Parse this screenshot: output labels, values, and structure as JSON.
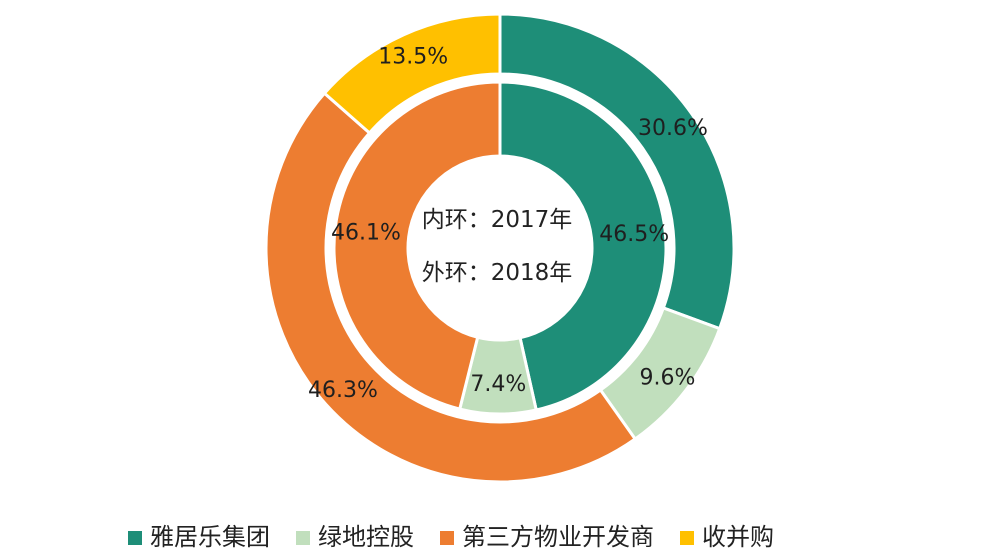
{
  "chart_data": {
    "type": "pie",
    "variant": "double-donut",
    "center_labels": [
      "内环：2017年",
      "外环：2018年"
    ],
    "categories": [
      "雅居乐集团",
      "绿地控股",
      "第三方物业开发商",
      "收并购"
    ],
    "colors": [
      "#1e8e78",
      "#c1dfbd",
      "#ed7d31",
      "#ffc000"
    ],
    "series": [
      {
        "ring": "inner",
        "values": [
          46.5,
          7.4,
          46.1,
          0
        ],
        "labels": [
          "46.5%",
          "7.4%",
          "46.1%",
          ""
        ]
      },
      {
        "ring": "outer",
        "values": [
          30.6,
          9.6,
          46.3,
          13.5
        ],
        "labels": [
          "30.6%",
          "9.6%",
          "46.3%",
          "13.5%"
        ]
      }
    ],
    "legend_position": "bottom"
  }
}
